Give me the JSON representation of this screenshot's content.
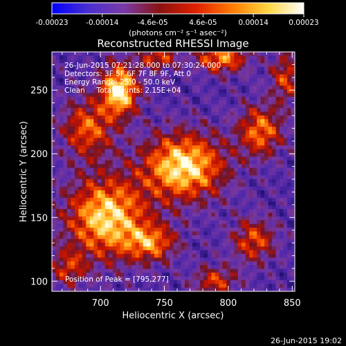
{
  "chart_data": {
    "type": "heatmap",
    "title": "Reconstructed RHESSI Image",
    "xlabel": "Heliocentric X (arcsec)",
    "ylabel": "Heliocentric Y (arcsec)",
    "xlim": [
      662,
      852
    ],
    "ylim": [
      92,
      280
    ],
    "x_ticks": [
      700,
      750,
      800,
      850
    ],
    "y_ticks": [
      100,
      150,
      200,
      250
    ],
    "colorbar": {
      "ticks": [
        "-0.00023",
        "-0.00014",
        "-4.6e-05",
        "4.6e-05",
        "0.00014",
        "0.00023"
      ],
      "range": [
        -0.00023,
        0.00023
      ],
      "label": "(photons cm⁻² s⁻¹ asec⁻²)",
      "colors": [
        "#0000ff",
        "#4a2fd0",
        "#7a3aa8",
        "#8a1210",
        "#e02000",
        "#ff7a00",
        "#ffd640",
        "#ffffff"
      ]
    },
    "annotations": [
      "26-Jun-2015 07:21:28.000 to 07:30:24.000",
      "Detectors: 3F 5F 6F 7F 8F 9F, Att 0",
      "Energy Range: 25.0 - 50.0 keV",
      "Clean     Total counts: 2.15E+04"
    ],
    "peak_label": "Position of Peak = [795,277]",
    "peak": [
      795,
      277
    ],
    "sources": [
      {
        "x": 715,
        "y": 250,
        "amp": 1.0,
        "sx": 10,
        "sy": 14
      },
      {
        "x": 765,
        "y": 190,
        "amp": 0.95,
        "sx": 22,
        "sy": 18
      },
      {
        "x": 705,
        "y": 150,
        "amp": 0.9,
        "sx": 22,
        "sy": 22
      },
      {
        "x": 690,
        "y": 220,
        "amp": 0.6,
        "sx": 14,
        "sy": 16
      },
      {
        "x": 795,
        "y": 275,
        "amp": 0.7,
        "sx": 14,
        "sy": 8
      },
      {
        "x": 825,
        "y": 218,
        "amp": 0.65,
        "sx": 12,
        "sy": 14
      },
      {
        "x": 820,
        "y": 132,
        "amp": 0.55,
        "sx": 12,
        "sy": 12
      },
      {
        "x": 790,
        "y": 100,
        "amp": 0.5,
        "sx": 12,
        "sy": 8
      },
      {
        "x": 740,
        "y": 130,
        "amp": 0.6,
        "sx": 14,
        "sy": 10
      },
      {
        "x": 745,
        "y": 275,
        "amp": 0.55,
        "sx": 10,
        "sy": 6
      },
      {
        "x": 845,
        "y": 260,
        "amp": 0.5,
        "sx": 8,
        "sy": 14
      },
      {
        "x": 675,
        "y": 110,
        "amp": 0.45,
        "sx": 10,
        "sy": 10
      }
    ],
    "footer_timestamp": "26-Jun-2015 19:02"
  }
}
